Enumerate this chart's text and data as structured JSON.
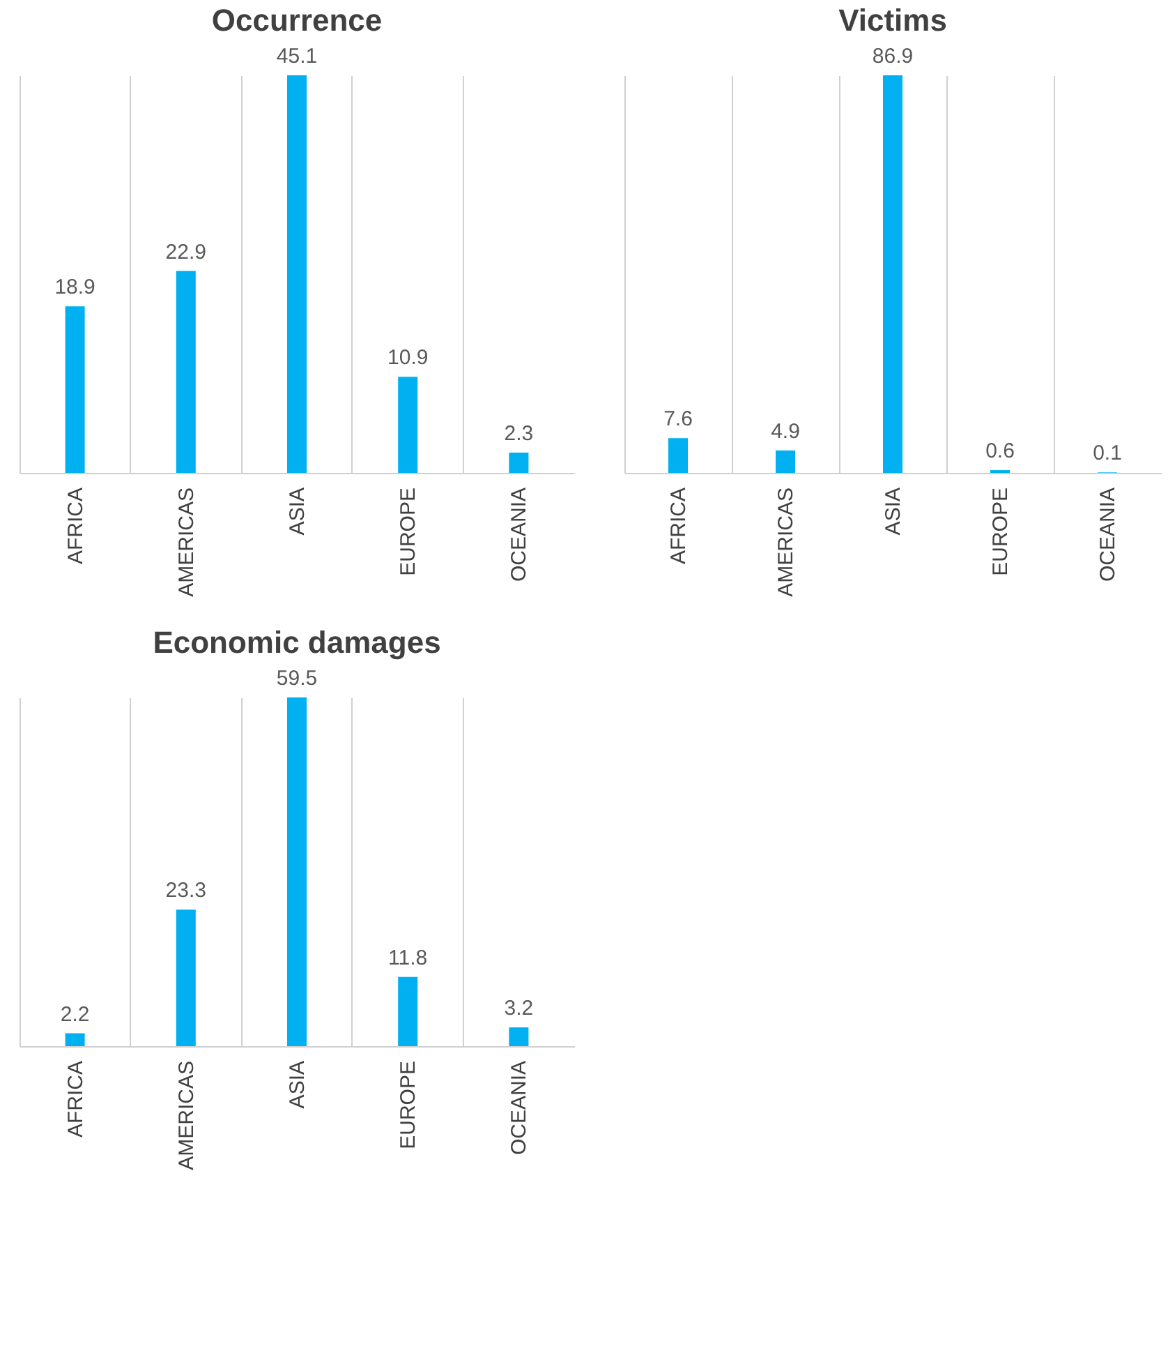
{
  "chart_data": [
    {
      "type": "bar",
      "title": "Occurrence",
      "categories": [
        "AFRICA",
        "AMERICAS",
        "ASIA",
        "EUROPE",
        "OCEANIA"
      ],
      "values": [
        18.9,
        22.9,
        45.1,
        10.9,
        2.3
      ],
      "color": "#00b0f0",
      "data_labels": true,
      "grid": "x",
      "tick_labels": "x"
    },
    {
      "type": "bar",
      "title": "Victims",
      "categories": [
        "AFRICA",
        "AMERICAS",
        "ASIA",
        "EUROPE",
        "OCEANIA"
      ],
      "values": [
        7.6,
        4.9,
        86.9,
        0.6,
        0.1
      ],
      "color": "#00b0f0",
      "data_labels": true,
      "grid": "x",
      "tick_labels": "x"
    },
    {
      "type": "bar",
      "title": "Economic damages",
      "categories": [
        "AFRICA",
        "AMERICAS",
        "ASIA",
        "EUROPE",
        "OCEANIA"
      ],
      "values": [
        2.2,
        23.3,
        59.5,
        11.8,
        3.2
      ],
      "color": "#00b0f0",
      "data_labels": true,
      "grid": "x",
      "tick_labels": "x"
    }
  ]
}
